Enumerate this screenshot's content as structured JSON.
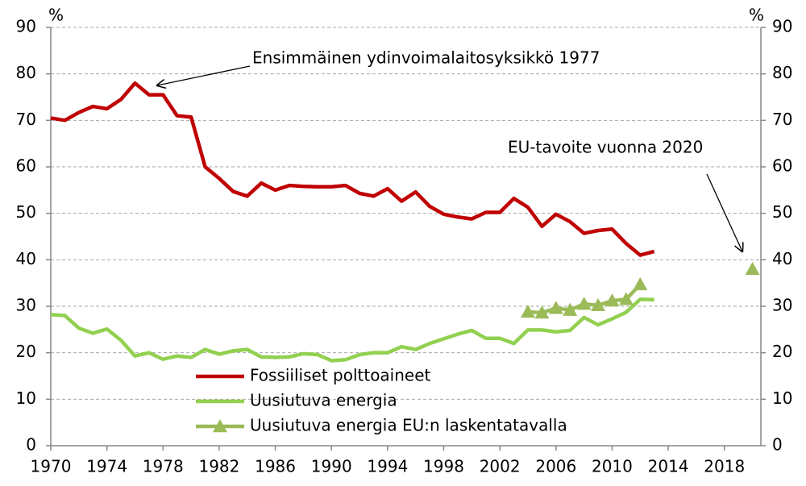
{
  "chart_data": {
    "type": "line",
    "y_unit_label": "%",
    "y2_unit_label": "%",
    "x": [
      1970,
      1971,
      1972,
      1973,
      1974,
      1975,
      1976,
      1977,
      1978,
      1979,
      1980,
      1981,
      1982,
      1983,
      1984,
      1985,
      1986,
      1987,
      1988,
      1989,
      1990,
      1991,
      1992,
      1993,
      1994,
      1995,
      1996,
      1997,
      1998,
      1999,
      2000,
      2001,
      2002,
      2003,
      2004,
      2005,
      2006,
      2007,
      2008,
      2009,
      2010,
      2011,
      2012,
      2013,
      2014,
      2015,
      2016,
      2017,
      2018,
      2019,
      2020
    ],
    "xlim": [
      1970,
      2020.6
    ],
    "xticks": [
      1970,
      1974,
      1978,
      1982,
      1986,
      1990,
      1994,
      1998,
      2002,
      2006,
      2010,
      2014,
      2018
    ],
    "ylim": [
      0,
      90
    ],
    "yticks": [
      0,
      10,
      20,
      30,
      40,
      50,
      60,
      70,
      80,
      90
    ],
    "y2lim": [
      0,
      90
    ],
    "y2ticks": [
      0,
      10,
      20,
      30,
      40,
      50,
      60,
      70,
      80,
      90
    ],
    "grid": true,
    "legend": "bottom-left",
    "series": [
      {
        "name": "Fossiiliset polttoaineet",
        "color": "#c00000",
        "marker": "none",
        "values": [
          70.5,
          70,
          71.7,
          73,
          72.5,
          74.5,
          78,
          75.5,
          75.5,
          71,
          70.7,
          60,
          57.5,
          54.7,
          53.7,
          56.5,
          55,
          56,
          55.8,
          55.7,
          55.7,
          56,
          54.3,
          53.7,
          55.3,
          52.6,
          54.6,
          51.5,
          49.8,
          49.2,
          48.8,
          50.2,
          50.2,
          53.2,
          51.3,
          47.2,
          49.8,
          48.2,
          45.7,
          46.3,
          46.6,
          43.5,
          41,
          41.8,
          null,
          null,
          null,
          null,
          null,
          null,
          null
        ]
      },
      {
        "name": "Uusiutuva energia",
        "color": "#92d050",
        "marker": "none",
        "values": [
          28.2,
          28,
          25.3,
          24.2,
          25.1,
          22.7,
          19.3,
          20,
          18.6,
          19.3,
          19,
          20.7,
          19.7,
          20.4,
          20.7,
          19.1,
          19,
          19.1,
          19.8,
          19.6,
          18.3,
          18.5,
          19.6,
          20,
          20,
          21.3,
          20.7,
          22,
          23,
          24,
          24.8,
          23.1,
          23.1,
          22,
          24.9,
          24.9,
          24.5,
          24.8,
          27.6,
          26,
          27.3,
          28.7,
          31.5,
          31.4,
          null,
          null,
          null,
          null,
          null,
          null,
          null
        ]
      },
      {
        "name": "Uusiutuva energia EU:n laskentatavalla",
        "color": "#9bbb59",
        "marker": "triangle",
        "values": [
          null,
          null,
          null,
          null,
          null,
          null,
          null,
          null,
          null,
          null,
          null,
          null,
          null,
          null,
          null,
          null,
          null,
          null,
          null,
          null,
          null,
          null,
          null,
          null,
          null,
          null,
          null,
          null,
          null,
          null,
          null,
          null,
          null,
          null,
          28.8,
          28.6,
          29.6,
          29.2,
          30.5,
          30.2,
          31.2,
          31.5,
          34.7,
          null,
          null,
          null,
          null,
          null,
          null,
          null,
          38
        ]
      }
    ],
    "annotations": [
      "Ensimmäinen ydinvoimalaitosyksikkö 1977",
      "EU-tavoite vuonna 2020"
    ]
  }
}
